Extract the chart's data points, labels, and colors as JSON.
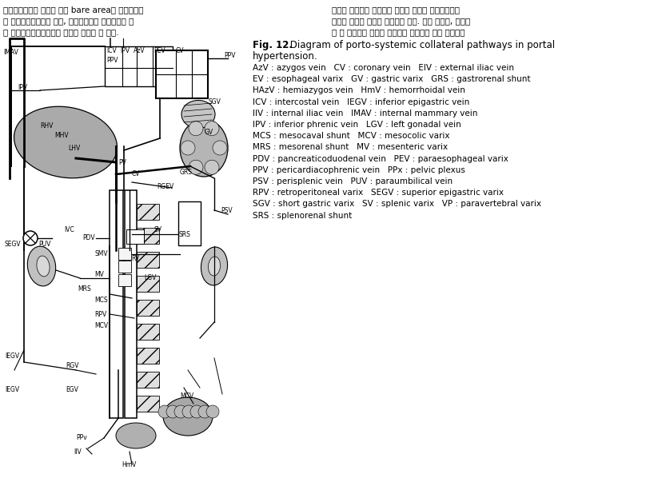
{
  "fig_label": "Fig. 12.",
  "fig_title": " Diagram of porto-systemic collateral pathways in portal",
  "fig_title2": "hypertension.",
  "legend_lines": [
    "AzV : azygos vein   CV : coronary vein   EIV : external iliac vein",
    "EV : esophageal varix   GV : gastric varix   GRS : gastrorenal shunt",
    "HAzV : hemiazygos vein   HmV : hemorrhoidal vein",
    "ICV : intercostal vein   IEGV : inferior epigastric vein",
    "IIV : internal iliac vein   IMAV : internal mammary vein",
    "IPV : inferior phrenic vein   LGV : left gonadal vein",
    "MCS : mesocaval shunt   MCV : mesocolic varix",
    "MRS : mesorenal shunt   MV : mesenteric varix",
    "PDV : pancreaticoduodenal vein   PEV : paraesophageal varix",
    "PPV : pericardiacophrenic vein   PPx : pelvic plexus",
    "PSV : perisplenic vein   PUV : paraumbilical vein",
    "RPV : retroperitoneal varix   SEGV : superior epigastric varix",
    "SGV : short gastric varix   SV : splenic varix   VP : paravertebral varix",
    "SRS : splenorenal shunt"
  ],
  "bg_color": "#ffffff",
  "text_color": "#000000",
  "legend_fs": 7.5,
  "title_fs": 8.5,
  "label_fs": 5.5,
  "korean_left_1": "경간측부환로의 해로서 간의 bare area의 정맥으로부",
  "korean_left_2": "터 우하횟격막정맥을 경유, 느간정맥으로 연결되거나 또",
  "korean_left_3": "는 우심장횟격막정맥으로 혜류가 연결될 수 있다.",
  "korean_right_1": "체외한 대부분의 측부환로 진단에 있어서 혜관조영술과",
  "korean_right_2": "같거나 우월한 것으로 보고되고 있다. 또한 후복강, 후종격",
  "korean_right_3": "동 및 장간막의 종류로 오인되는 정맥류의 경우 조영증강"
}
